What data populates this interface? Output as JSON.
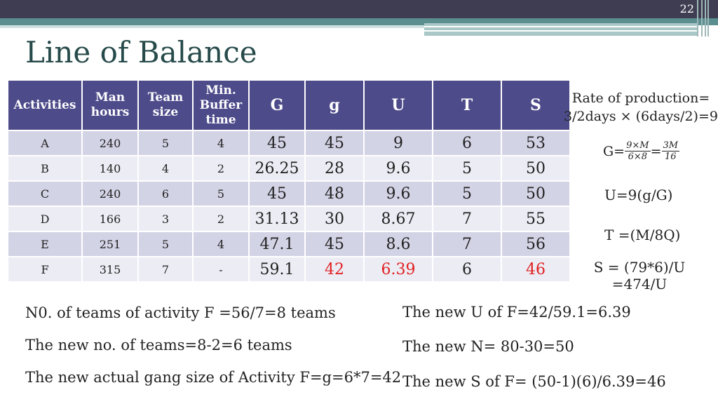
{
  "slide_number": "22",
  "title": "Line of Balance",
  "table": {
    "headers": [
      {
        "text": "Activities",
        "big": false
      },
      {
        "text": "Man hours",
        "big": false
      },
      {
        "text": "Team size",
        "big": false
      },
      {
        "text": "Min. Buffer time",
        "big": false
      },
      {
        "text": "G",
        "big": true
      },
      {
        "text": "g",
        "big": true
      },
      {
        "text": "U",
        "big": true
      },
      {
        "text": "T",
        "big": true
      },
      {
        "text": "S",
        "big": true
      }
    ],
    "rows": [
      [
        "A",
        "240",
        "5",
        "4",
        "45",
        "45",
        "9",
        "6",
        "53"
      ],
      [
        "B",
        "140",
        "4",
        "2",
        "26.25",
        "28",
        "9.6",
        "5",
        "50"
      ],
      [
        "C",
        "240",
        "6",
        "5",
        "45",
        "48",
        "9.6",
        "5",
        "50"
      ],
      [
        "D",
        "166",
        "3",
        "2",
        "31.13",
        "30",
        "8.67",
        "7",
        "55"
      ],
      [
        "E",
        "251",
        "5",
        "4",
        "47.1",
        "45",
        "8.6",
        "7",
        "56"
      ],
      [
        "F",
        "315",
        "7",
        "-",
        "59.1",
        "42",
        "6.39",
        "6",
        "46"
      ]
    ],
    "highlight_color": "#e02020"
  },
  "right_notes": {
    "rate_line1": "Rate of production=",
    "rate_line2": "3/2days × (6days/2)=9",
    "g_prefix": "G=",
    "g_frac1_num": "9×M",
    "g_frac1_den": "6×8",
    "g_eq": "=",
    "g_frac2_num": "3M",
    "g_frac2_den": "16",
    "u_formula": "U=9(g/G)",
    "t_formula": "T =(M/8Q)",
    "s_line1": "S = (79*6)/U",
    "s_line2": "=474/U"
  },
  "bottom_left": [
    "N0. of teams of activity F =56/7=8 teams",
    "The new no. of teams=8-2=6 teams",
    "The new actual gang size of Activity F=g=6*7=42"
  ],
  "bottom_right": [
    "The new U of F=42/59.1=6.39",
    "The new N= 80-30=50",
    "The new S of F= (50-1)(6)/6.39=46"
  ]
}
